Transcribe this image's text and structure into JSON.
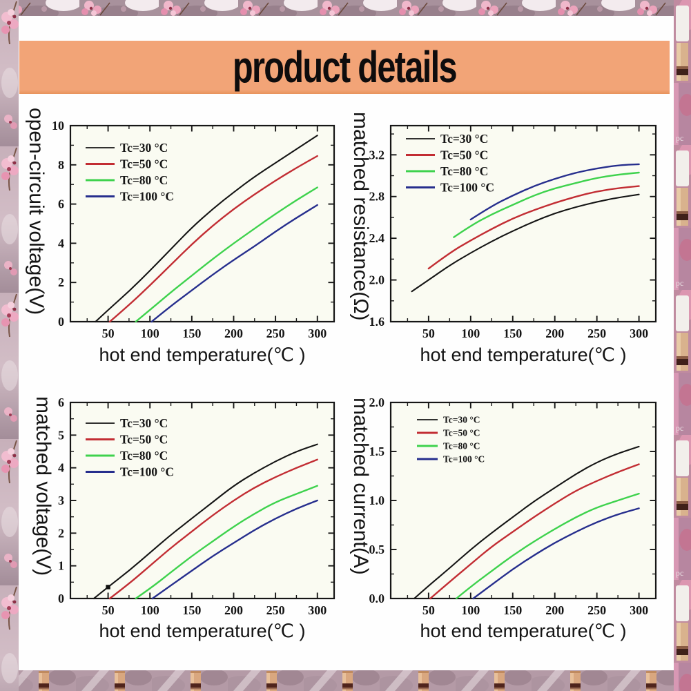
{
  "banner": {
    "title": "product details",
    "bg_color": "#f2a477",
    "text_color": "#0e0c0d"
  },
  "border": {
    "watermark": "pc",
    "base_color": "#b49aa6",
    "blossom_pink": "#efb3c8",
    "product_tan": "#d7a77c"
  },
  "chart_data": [
    {
      "type": "line",
      "name": "open-circuit-voltage",
      "xlabel": "hot end temperature(℃ )",
      "ylabel": "open-circuit voltage(V)",
      "xlim": [
        5,
        320
      ],
      "ylim": [
        0,
        10
      ],
      "x_ticks": {
        "values": [
          50,
          100,
          150,
          200,
          250,
          300
        ],
        "labels": [
          "50",
          "100",
          "150",
          "200",
          "250",
          "300"
        ],
        "minor_step": 25
      },
      "y_ticks": {
        "values": [
          0,
          2,
          4,
          6,
          8,
          10
        ],
        "labels": [
          "0",
          "2",
          "4",
          "6",
          "8",
          "10"
        ],
        "minor_step": 1
      },
      "legend_position": "top-left-inside",
      "series": [
        {
          "name": "Tc=30 °C",
          "color": "#141414",
          "points": [
            [
              35,
              0
            ],
            [
              50,
              0.6
            ],
            [
              75,
              1.55
            ],
            [
              100,
              2.6
            ],
            [
              125,
              3.7
            ],
            [
              150,
              4.8
            ],
            [
              175,
              5.75
            ],
            [
              200,
              6.6
            ],
            [
              225,
              7.4
            ],
            [
              250,
              8.1
            ],
            [
              275,
              8.8
            ],
            [
              300,
              9.5
            ]
          ]
        },
        {
          "name": "Tc=50 °C",
          "color": "#c22d33",
          "points": [
            [
              52,
              0
            ],
            [
              75,
              0.85
            ],
            [
              100,
              1.85
            ],
            [
              125,
              2.9
            ],
            [
              150,
              3.95
            ],
            [
              175,
              4.9
            ],
            [
              200,
              5.75
            ],
            [
              225,
              6.5
            ],
            [
              250,
              7.2
            ],
            [
              275,
              7.85
            ],
            [
              300,
              8.45
            ]
          ]
        },
        {
          "name": "Tc=80 °C",
          "color": "#3ed24d",
          "points": [
            [
              83,
              0
            ],
            [
              100,
              0.6
            ],
            [
              125,
              1.5
            ],
            [
              150,
              2.35
            ],
            [
              175,
              3.2
            ],
            [
              200,
              4.0
            ],
            [
              225,
              4.75
            ],
            [
              250,
              5.5
            ],
            [
              275,
              6.2
            ],
            [
              300,
              6.85
            ]
          ]
        },
        {
          "name": "Tc=100 °C",
          "color": "#262e8d",
          "points": [
            [
              102,
              0
            ],
            [
              125,
              0.8
            ],
            [
              150,
              1.6
            ],
            [
              175,
              2.4
            ],
            [
              200,
              3.15
            ],
            [
              225,
              3.85
            ],
            [
              250,
              4.6
            ],
            [
              275,
              5.3
            ],
            [
              300,
              5.95
            ]
          ]
        }
      ]
    },
    {
      "type": "line",
      "name": "matched-resistance",
      "xlabel": "hot end temperature(℃ )",
      "ylabel": "matched resistance(Ω)",
      "xlim": [
        5,
        320
      ],
      "ylim": [
        1.6,
        3.48
      ],
      "x_ticks": {
        "values": [
          50,
          100,
          150,
          200,
          250,
          300
        ],
        "labels": [
          "50",
          "100",
          "150",
          "200",
          "250",
          "300"
        ],
        "minor_step": 25
      },
      "y_ticks": {
        "values": [
          1.6,
          2.0,
          2.4,
          2.8,
          3.2
        ],
        "labels": [
          "1.6",
          "2.0",
          "2.4",
          "2.8",
          "3.2"
        ],
        "minor_step": 0.2
      },
      "legend_position": "top-left-inside",
      "series": [
        {
          "name": "Tc=30 °C",
          "color": "#141414",
          "points": [
            [
              30,
              1.89
            ],
            [
              50,
              2.0
            ],
            [
              75,
              2.14
            ],
            [
              100,
              2.26
            ],
            [
              125,
              2.37
            ],
            [
              150,
              2.47
            ],
            [
              175,
              2.56
            ],
            [
              200,
              2.64
            ],
            [
              225,
              2.7
            ],
            [
              250,
              2.75
            ],
            [
              275,
              2.79
            ],
            [
              300,
              2.82
            ]
          ]
        },
        {
          "name": "Tc=50 °C",
          "color": "#c22d33",
          "points": [
            [
              50,
              2.11
            ],
            [
              75,
              2.26
            ],
            [
              100,
              2.38
            ],
            [
              125,
              2.49
            ],
            [
              150,
              2.59
            ],
            [
              175,
              2.67
            ],
            [
              200,
              2.74
            ],
            [
              225,
              2.8
            ],
            [
              250,
              2.85
            ],
            [
              275,
              2.88
            ],
            [
              300,
              2.9
            ]
          ]
        },
        {
          "name": "Tc=80 °C",
          "color": "#3ed24d",
          "points": [
            [
              80,
              2.41
            ],
            [
              100,
              2.52
            ],
            [
              125,
              2.63
            ],
            [
              150,
              2.72
            ],
            [
              175,
              2.81
            ],
            [
              200,
              2.88
            ],
            [
              225,
              2.93
            ],
            [
              250,
              2.98
            ],
            [
              275,
              3.01
            ],
            [
              300,
              3.03
            ]
          ]
        },
        {
          "name": "Tc=100 °C",
          "color": "#262e8d",
          "points": [
            [
              100,
              2.58
            ],
            [
              125,
              2.71
            ],
            [
              150,
              2.81
            ],
            [
              175,
              2.9
            ],
            [
              200,
              2.97
            ],
            [
              225,
              3.03
            ],
            [
              250,
              3.07
            ],
            [
              275,
              3.1
            ],
            [
              300,
              3.11
            ]
          ]
        }
      ]
    },
    {
      "type": "line",
      "name": "matched-voltage",
      "xlabel": "hot end temperature(℃ )",
      "ylabel": "matched voltage(V)",
      "xlim": [
        5,
        320
      ],
      "ylim": [
        0,
        6
      ],
      "x_ticks": {
        "values": [
          50,
          100,
          150,
          200,
          250,
          300
        ],
        "labels": [
          "50",
          "100",
          "150",
          "200",
          "250",
          "300"
        ],
        "minor_step": 25
      },
      "y_ticks": {
        "values": [
          0,
          1,
          2,
          3,
          4,
          5,
          6
        ],
        "labels": [
          "0",
          "1",
          "2",
          "3",
          "4",
          "5",
          "6"
        ],
        "minor_step": 0.5
      },
      "legend_position": "top-left-inside",
      "marker": {
        "series": "Tc=30 °C",
        "x": 50,
        "y": 0.35,
        "shape": "square"
      },
      "series": [
        {
          "name": "Tc=30 °C",
          "color": "#141414",
          "points": [
            [
              33,
              0
            ],
            [
              50,
              0.35
            ],
            [
              75,
              0.85
            ],
            [
              100,
              1.4
            ],
            [
              125,
              1.95
            ],
            [
              150,
              2.45
            ],
            [
              175,
              2.95
            ],
            [
              200,
              3.45
            ],
            [
              225,
              3.85
            ],
            [
              250,
              4.2
            ],
            [
              275,
              4.5
            ],
            [
              300,
              4.72
            ]
          ]
        },
        {
          "name": "Tc=50 °C",
          "color": "#c22d33",
          "points": [
            [
              52,
              0
            ],
            [
              75,
              0.45
            ],
            [
              100,
              1.0
            ],
            [
              125,
              1.55
            ],
            [
              150,
              2.05
            ],
            [
              175,
              2.55
            ],
            [
              200,
              3.0
            ],
            [
              225,
              3.4
            ],
            [
              250,
              3.72
            ],
            [
              275,
              4.0
            ],
            [
              300,
              4.25
            ]
          ]
        },
        {
          "name": "Tc=80 °C",
          "color": "#3ed24d",
          "points": [
            [
              83,
              0
            ],
            [
              100,
              0.3
            ],
            [
              125,
              0.8
            ],
            [
              150,
              1.3
            ],
            [
              175,
              1.75
            ],
            [
              200,
              2.2
            ],
            [
              225,
              2.6
            ],
            [
              250,
              2.95
            ],
            [
              275,
              3.2
            ],
            [
              300,
              3.45
            ]
          ]
        },
        {
          "name": "Tc=100 °C",
          "color": "#262e8d",
          "points": [
            [
              103,
              0
            ],
            [
              125,
              0.4
            ],
            [
              150,
              0.85
            ],
            [
              175,
              1.3
            ],
            [
              200,
              1.7
            ],
            [
              225,
              2.1
            ],
            [
              250,
              2.45
            ],
            [
              275,
              2.75
            ],
            [
              300,
              3.0
            ]
          ]
        }
      ]
    },
    {
      "type": "line",
      "name": "matched-current",
      "xlabel": "hot end temperature(℃ )",
      "ylabel": "matched current(A)",
      "xlim": [
        5,
        320
      ],
      "ylim": [
        0,
        2.0
      ],
      "x_ticks": {
        "values": [
          50,
          100,
          150,
          200,
          250,
          300
        ],
        "labels": [
          "50",
          "100",
          "150",
          "200",
          "250",
          "300"
        ],
        "minor_step": 25
      },
      "y_ticks": {
        "values": [
          0,
          0.5,
          1.0,
          1.5,
          2.0
        ],
        "labels": [
          "0.0",
          "0.5",
          "1.0",
          "1.5",
          "2.0"
        ],
        "minor_step": 0.25
      },
      "legend_position": "top-left-inside",
      "series": [
        {
          "name": "Tc=30 °C",
          "color": "#141414",
          "points": [
            [
              33,
              0
            ],
            [
              50,
              0.13
            ],
            [
              75,
              0.31
            ],
            [
              100,
              0.5
            ],
            [
              125,
              0.67
            ],
            [
              150,
              0.83
            ],
            [
              175,
              0.99
            ],
            [
              200,
              1.13
            ],
            [
              225,
              1.27
            ],
            [
              250,
              1.39
            ],
            [
              275,
              1.48
            ],
            [
              300,
              1.55
            ]
          ]
        },
        {
          "name": "Tc=50 °C",
          "color": "#c22d33",
          "points": [
            [
              52,
              0
            ],
            [
              75,
              0.17
            ],
            [
              100,
              0.35
            ],
            [
              125,
              0.53
            ],
            [
              150,
              0.68
            ],
            [
              175,
              0.83
            ],
            [
              200,
              0.97
            ],
            [
              225,
              1.1
            ],
            [
              250,
              1.2
            ],
            [
              275,
              1.29
            ],
            [
              300,
              1.37
            ]
          ]
        },
        {
          "name": "Tc=80 °C",
          "color": "#3ed24d",
          "points": [
            [
              83,
              0
            ],
            [
              100,
              0.12
            ],
            [
              125,
              0.28
            ],
            [
              150,
              0.44
            ],
            [
              175,
              0.58
            ],
            [
              200,
              0.71
            ],
            [
              225,
              0.83
            ],
            [
              250,
              0.93
            ],
            [
              275,
              1.0
            ],
            [
              300,
              1.07
            ]
          ]
        },
        {
          "name": "Tc=100 °C",
          "color": "#262e8d",
          "points": [
            [
              103,
              0
            ],
            [
              125,
              0.14
            ],
            [
              150,
              0.3
            ],
            [
              175,
              0.44
            ],
            [
              200,
              0.57
            ],
            [
              225,
              0.68
            ],
            [
              250,
              0.78
            ],
            [
              275,
              0.86
            ],
            [
              300,
              0.92
            ]
          ]
        }
      ]
    }
  ]
}
